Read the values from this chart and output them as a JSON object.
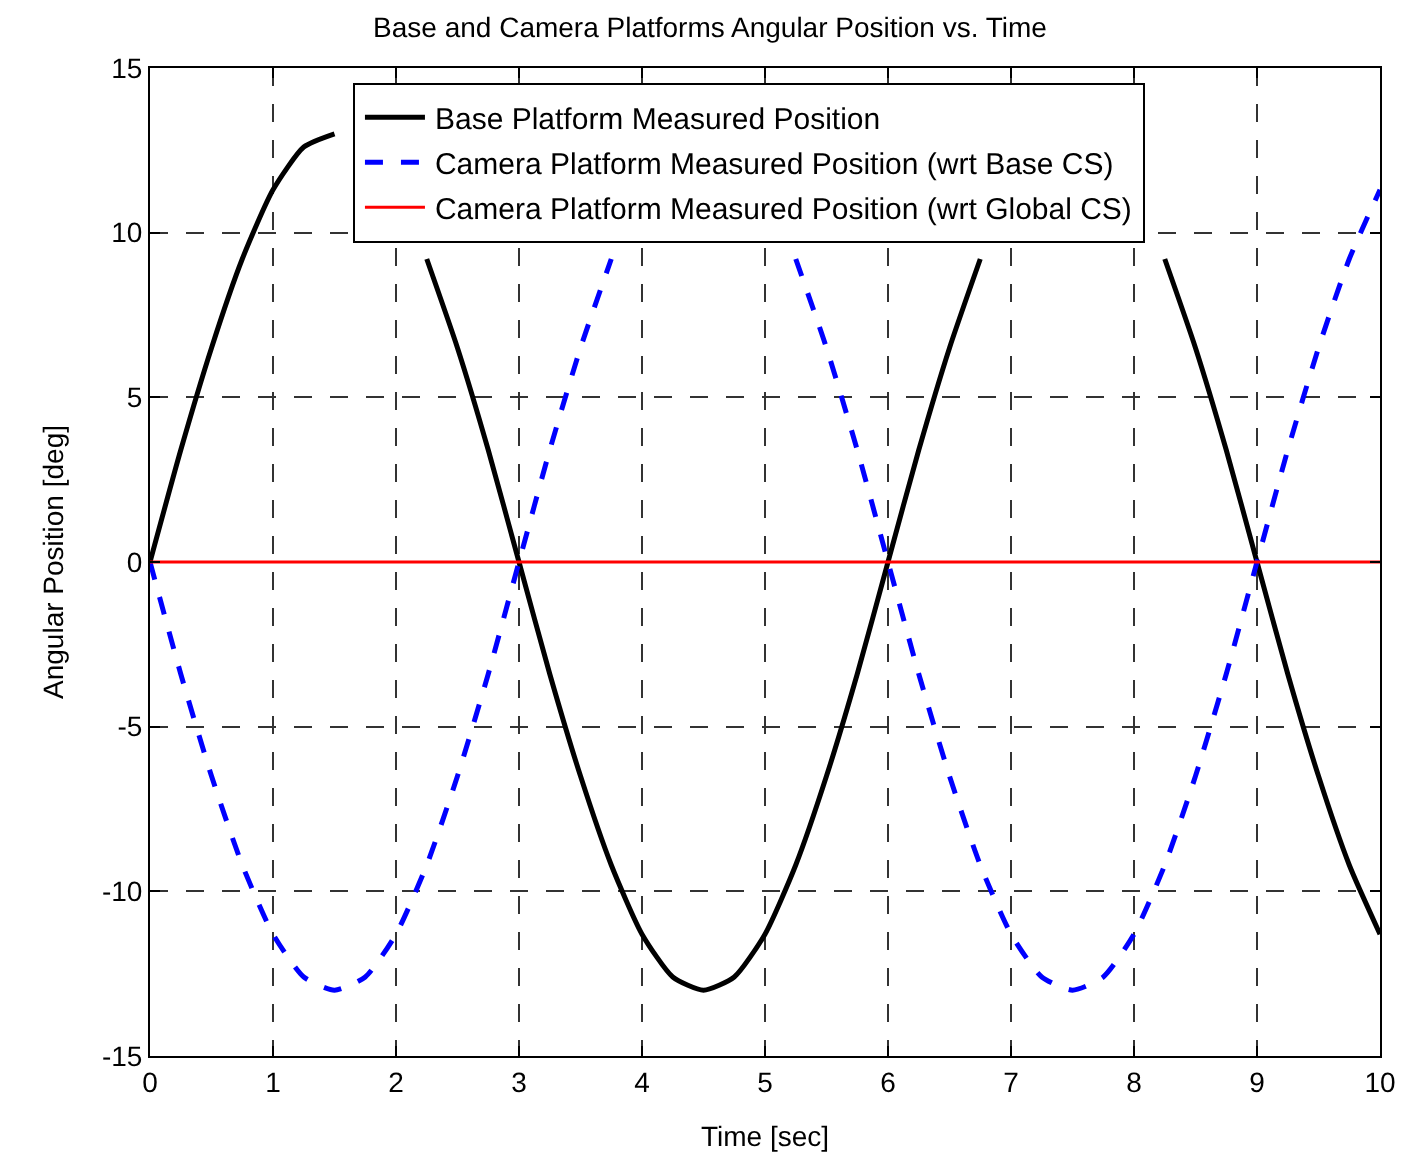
{
  "chart_data": {
    "type": "line",
    "title": "Base and Camera Platforms Angular Position vs. Time",
    "xlabel": "Time [sec]",
    "ylabel": "Angular Position [deg]",
    "x": [
      0,
      0.25,
      0.5,
      0.75,
      1,
      1.25,
      1.5,
      1.75,
      2,
      2.25,
      2.5,
      2.75,
      3,
      3.25,
      3.5,
      3.75,
      4,
      4.25,
      4.5,
      4.75,
      5,
      5.25,
      5.5,
      5.75,
      6,
      6.25,
      6.5,
      6.75,
      7,
      7.25,
      7.5,
      7.75,
      8,
      8.25,
      8.5,
      8.75,
      9,
      9.25,
      9.5,
      9.75,
      10
    ],
    "series": [
      {
        "name": "Base Platform Measured Position",
        "color": "#000000",
        "line_style": "solid",
        "values": [
          0,
          3.4,
          6.5,
          9.2,
          11.3,
          12.6,
          13.0,
          null,
          null,
          9.2,
          6.5,
          3.4,
          0,
          -3.4,
          -6.5,
          -9.2,
          -11.3,
          -12.6,
          -13.0,
          -12.6,
          -11.3,
          -9.2,
          -6.5,
          -3.4,
          0,
          3.4,
          6.5,
          9.2,
          null,
          null,
          null,
          null,
          null,
          9.2,
          6.5,
          3.4,
          0,
          -3.4,
          -6.5,
          -9.2,
          -11.3
        ]
      },
      {
        "name": "Camera Platform Measured Position (wrt Base CS)",
        "color": "#0000ff",
        "line_style": "dashed",
        "values": [
          0,
          -3.4,
          -6.5,
          -9.2,
          -11.3,
          -12.6,
          -13.0,
          -12.6,
          -11.3,
          -9.2,
          -6.5,
          -3.4,
          0,
          3.4,
          6.5,
          9.2,
          null,
          null,
          null,
          null,
          null,
          9.2,
          6.5,
          3.4,
          0,
          -3.4,
          -6.5,
          -9.2,
          -11.3,
          -12.6,
          -13.0,
          -12.6,
          -11.3,
          -9.2,
          -6.5,
          -3.4,
          0,
          3.4,
          6.5,
          9.2,
          11.3
        ]
      },
      {
        "name": "Camera Platform Measured Position (wrt Global CS)",
        "color": "#ff0000",
        "line_style": "solid",
        "values": [
          0,
          0,
          0,
          0,
          0,
          0,
          0,
          0,
          0,
          0,
          0,
          0,
          0,
          0,
          0,
          0,
          0,
          0,
          0,
          0,
          0,
          0,
          0,
          0,
          0,
          0,
          0,
          0,
          0,
          0,
          0,
          0,
          0,
          0,
          0,
          0,
          0,
          0,
          0,
          0,
          0
        ]
      }
    ],
    "xlim": [
      0,
      10
    ],
    "xticks": [
      0,
      1,
      2,
      3,
      4,
      5,
      6,
      7,
      8,
      9,
      10
    ],
    "ylim": [
      -15,
      15
    ],
    "yticks": [
      -15,
      -10,
      -5,
      0,
      5,
      10,
      15
    ],
    "grid": true,
    "legend": "top right",
    "marker": "none"
  }
}
